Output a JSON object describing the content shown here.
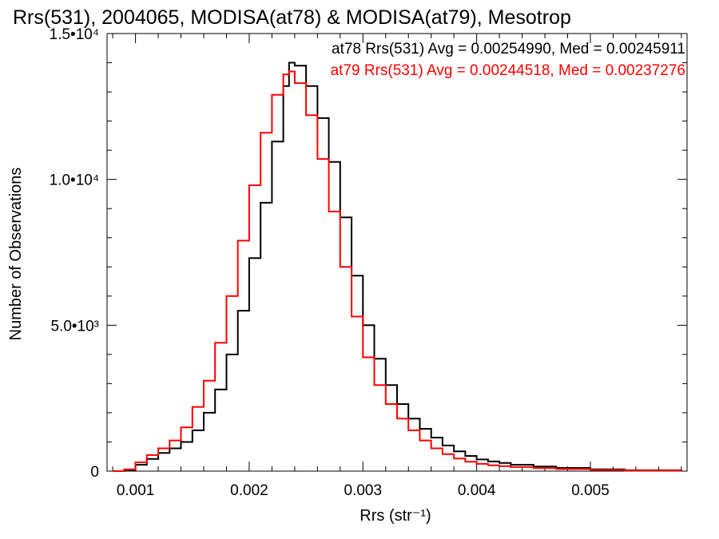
{
  "chart_data": {
    "type": "line",
    "title": "Rrs(531), 2004065, MODISA(at78) & MODISA(at79), Mesotrop",
    "xlabel": "Rrs (str⁻¹)",
    "ylabel": "Number of Observations",
    "xlim": [
      0.00075,
      0.00585
    ],
    "ylim": [
      0,
      15000
    ],
    "x_ticks": [
      {
        "value": 0.001,
        "label": "0.001"
      },
      {
        "value": 0.002,
        "label": "0.002"
      },
      {
        "value": 0.003,
        "label": "0.003"
      },
      {
        "value": 0.004,
        "label": "0.004"
      },
      {
        "value": 0.005,
        "label": "0.005"
      }
    ],
    "y_ticks": [
      {
        "value": 0,
        "label": "0"
      },
      {
        "value": 5000,
        "label": "5.0•10³"
      },
      {
        "value": 10000,
        "label": "1.0•10⁴"
      },
      {
        "value": 15000,
        "label": "1.5•10⁴"
      }
    ],
    "grid": false,
    "plot_style": "step",
    "legend_position": "top-right",
    "series": [
      {
        "label": "at78 Rrs(531) Avg = 0.00254990, Med = 0.00245911",
        "color": "#000000",
        "x": [
          0.0008,
          0.0009,
          0.001,
          0.0011,
          0.0012,
          0.0013,
          0.0014,
          0.0015,
          0.0016,
          0.0017,
          0.0018,
          0.0019,
          0.002,
          0.0021,
          0.0022,
          0.0023,
          0.00235,
          0.0024,
          0.0025,
          0.0026,
          0.0027,
          0.0028,
          0.0029,
          0.003,
          0.0031,
          0.0032,
          0.0033,
          0.0034,
          0.0035,
          0.0036,
          0.0037,
          0.0038,
          0.0039,
          0.004,
          0.0041,
          0.0042,
          0.0043,
          0.0045,
          0.0047,
          0.005,
          0.0053,
          0.0058
        ],
        "y": [
          0,
          40,
          220,
          420,
          620,
          780,
          1000,
          1400,
          2000,
          2800,
          4000,
          5500,
          7300,
          9200,
          11300,
          13200,
          14000,
          13900,
          13200,
          12100,
          10600,
          8700,
          6700,
          5000,
          3850,
          2950,
          2300,
          1800,
          1450,
          1150,
          880,
          680,
          520,
          400,
          330,
          280,
          220,
          160,
          110,
          60,
          30,
          10
        ]
      },
      {
        "label": "at79 Rrs(531) Avg = 0.00244518, Med = 0.00237276",
        "color": "#ff0000",
        "x": [
          0.0008,
          0.0009,
          0.001,
          0.0011,
          0.0012,
          0.0013,
          0.0014,
          0.0015,
          0.0016,
          0.0017,
          0.0018,
          0.0019,
          0.002,
          0.0021,
          0.0022,
          0.0023,
          0.00235,
          0.0024,
          0.0025,
          0.0026,
          0.0027,
          0.0028,
          0.0029,
          0.003,
          0.0031,
          0.0032,
          0.0033,
          0.0034,
          0.0035,
          0.0036,
          0.0037,
          0.0038,
          0.0039,
          0.004,
          0.0041,
          0.0042,
          0.0043,
          0.0045,
          0.0047,
          0.005,
          0.0053,
          0.0058
        ],
        "y": [
          0,
          60,
          300,
          550,
          780,
          1050,
          1500,
          2200,
          3100,
          4400,
          6000,
          7900,
          9800,
          11600,
          12900,
          13600,
          13700,
          13300,
          12200,
          10700,
          8900,
          7000,
          5300,
          3900,
          2950,
          2300,
          1800,
          1400,
          1050,
          780,
          580,
          430,
          320,
          250,
          200,
          170,
          140,
          100,
          70,
          40,
          20,
          10
        ]
      }
    ]
  }
}
